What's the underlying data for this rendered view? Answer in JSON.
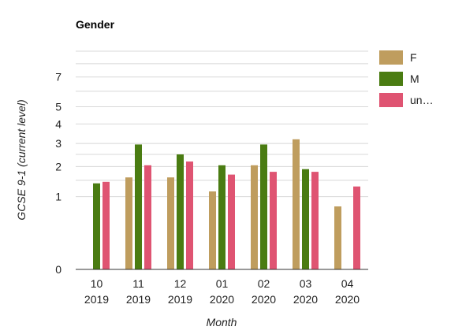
{
  "chart_data": {
    "type": "bar",
    "title": "Gender",
    "xlabel": "Month",
    "ylabel": "GCSE 9-1 (current level)",
    "categories": [
      [
        "10",
        "2019"
      ],
      [
        "11",
        "2019"
      ],
      [
        "12",
        "2019"
      ],
      [
        "01",
        "2020"
      ],
      [
        "02",
        "2020"
      ],
      [
        "03",
        "2020"
      ],
      [
        "04",
        "2020"
      ]
    ],
    "y_ticks": [
      0,
      1,
      2,
      3,
      4,
      5,
      7
    ],
    "y_scale": "square-root",
    "ylim": [
      0,
      9
    ],
    "grid": true,
    "legend_position": "right",
    "series": [
      {
        "name": "F",
        "color": "#bf9d5e",
        "values": [
          null,
          1.6,
          1.6,
          1.15,
          2.05,
          3.2,
          0.75
        ]
      },
      {
        "name": "M",
        "color": "#4a7c12",
        "values": [
          1.4,
          2.95,
          2.5,
          2.05,
          2.95,
          1.9,
          null
        ]
      },
      {
        "name": "un…",
        "color": "#df5472",
        "values": [
          1.45,
          2.05,
          2.2,
          1.7,
          1.8,
          1.8,
          1.3
        ]
      }
    ]
  }
}
